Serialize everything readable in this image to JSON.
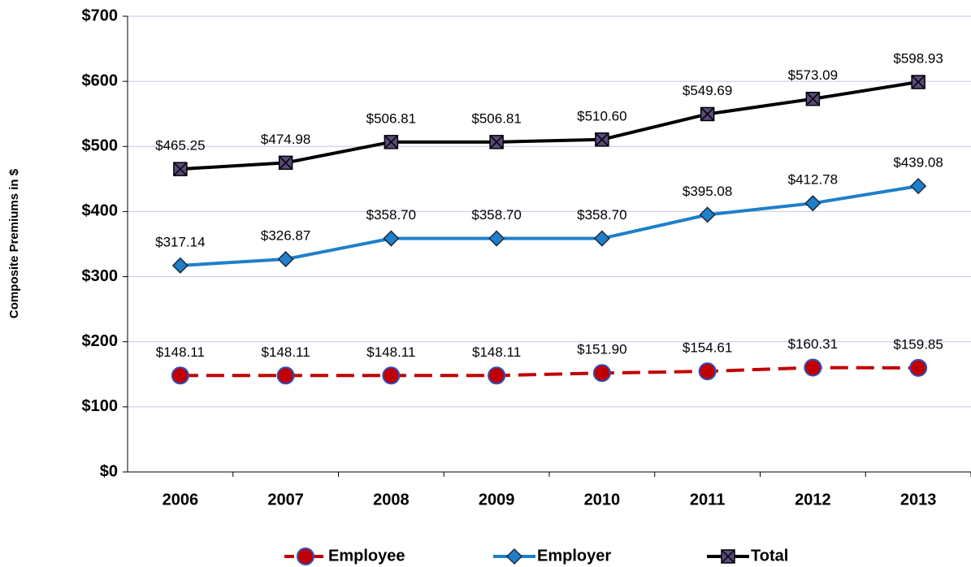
{
  "chart_data": {
    "type": "line",
    "y_axis_label": "Composite Premiums in $",
    "categories": [
      "2006",
      "2007",
      "2008",
      "2009",
      "2010",
      "2011",
      "2012",
      "2013"
    ],
    "series": [
      {
        "name": "Employee",
        "color": "#c00000",
        "marker": "circle",
        "dashed": true,
        "values": [
          148.11,
          148.11,
          148.11,
          148.11,
          151.9,
          154.61,
          160.31,
          159.85
        ],
        "value_labels": [
          "$148.11",
          "$148.11",
          "$148.11",
          "$148.11",
          "$151.90",
          "$154.61",
          "$160.31",
          "$159.85"
        ]
      },
      {
        "name": "Employer",
        "color": "#1f7fc8",
        "marker": "diamond",
        "dashed": false,
        "values": [
          317.14,
          326.87,
          358.7,
          358.7,
          358.7,
          395.08,
          412.78,
          439.08
        ],
        "value_labels": [
          "$317.14",
          "$326.87",
          "$358.70",
          "$358.70",
          "$358.70",
          "$395.08",
          "$412.78",
          "$439.08"
        ]
      },
      {
        "name": "Total",
        "color": "#000000",
        "marker": "xsquare",
        "dashed": false,
        "values": [
          465.25,
          474.98,
          506.81,
          506.81,
          510.6,
          549.69,
          573.09,
          598.93
        ],
        "value_labels": [
          "$465.25",
          "$474.98",
          "$506.81",
          "$506.81",
          "$510.60",
          "$549.69",
          "$573.09",
          "$598.93"
        ]
      }
    ],
    "ylim": [
      0,
      700
    ],
    "yticks": [
      {
        "value": 0,
        "label": "$0"
      },
      {
        "value": 100,
        "label": "$100"
      },
      {
        "value": 200,
        "label": "$200"
      },
      {
        "value": 300,
        "label": "$300"
      },
      {
        "value": 400,
        "label": "$400"
      },
      {
        "value": 500,
        "label": "$500"
      },
      {
        "value": 600,
        "label": "$600"
      },
      {
        "value": 700,
        "label": "$700"
      }
    ],
    "grid": true,
    "legend": "bottom"
  }
}
